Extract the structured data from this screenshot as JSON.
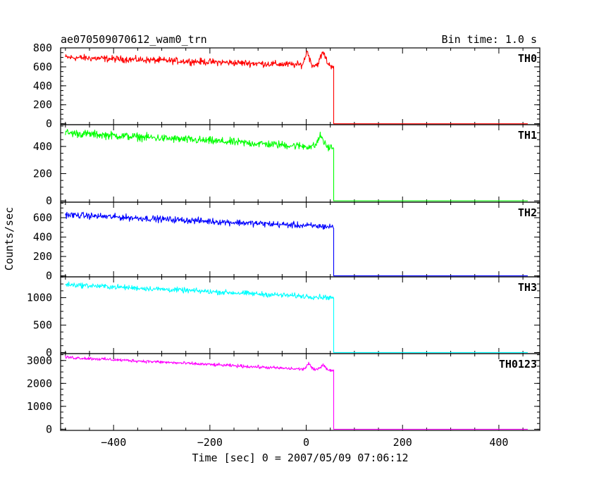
{
  "chart_data": {
    "type": "line",
    "title": "ae070509070612_wam0_trn",
    "bin_time_label": "Bin time: 1.0 s",
    "xlabel": "Time [sec] 0 = 2007/05/09 07:06:12",
    "ylabel": "Counts/sec",
    "xlim": [
      -510,
      485
    ],
    "x_ticks": [
      -400,
      -200,
      0,
      200,
      400
    ],
    "x_tick_labels": [
      "−400",
      "−200",
      "0",
      "200",
      "400"
    ],
    "drop_time": 57,
    "x_start": -500,
    "x_end": 460,
    "panels": [
      {
        "name": "TH0",
        "color": "#ff0000",
        "ylim": [
          -10,
          800
        ],
        "yticks": [
          0,
          200,
          400,
          600,
          800
        ],
        "start_level": 700,
        "end_level": 610,
        "noise": 30,
        "after_level": 0,
        "features": [
          {
            "t": 2,
            "amp": 140,
            "w": 6
          },
          {
            "t": 35,
            "amp": 130,
            "w": 8
          }
        ]
      },
      {
        "name": "TH1",
        "color": "#00ff00",
        "ylim": [
          -10,
          560
        ],
        "yticks": [
          0,
          200,
          400
        ],
        "start_level": 500,
        "end_level": 390,
        "noise": 25,
        "after_level": 0,
        "features": [
          {
            "t": 30,
            "amp": 80,
            "w": 8
          }
        ]
      },
      {
        "name": "TH2",
        "color": "#0000ff",
        "ylim": [
          -10,
          760
        ],
        "yticks": [
          0,
          200,
          400,
          600
        ],
        "start_level": 630,
        "end_level": 505,
        "noise": 28,
        "after_level": 0,
        "features": []
      },
      {
        "name": "TH3",
        "color": "#00ffff",
        "ylim": [
          -20,
          1380
        ],
        "yticks": [
          0,
          500,
          1000
        ],
        "start_level": 1240,
        "end_level": 1000,
        "noise": 40,
        "after_level": 0,
        "features": []
      },
      {
        "name": "TH0123",
        "color": "#ff00ff",
        "ylim": [
          -50,
          3300
        ],
        "yticks": [
          0,
          1000,
          2000,
          3000
        ],
        "start_level": 3140,
        "end_level": 2550,
        "noise": 60,
        "after_level": 0,
        "features": [
          {
            "t": 5,
            "amp": 250,
            "w": 6
          },
          {
            "t": 35,
            "amp": 230,
            "w": 8
          }
        ]
      }
    ]
  }
}
